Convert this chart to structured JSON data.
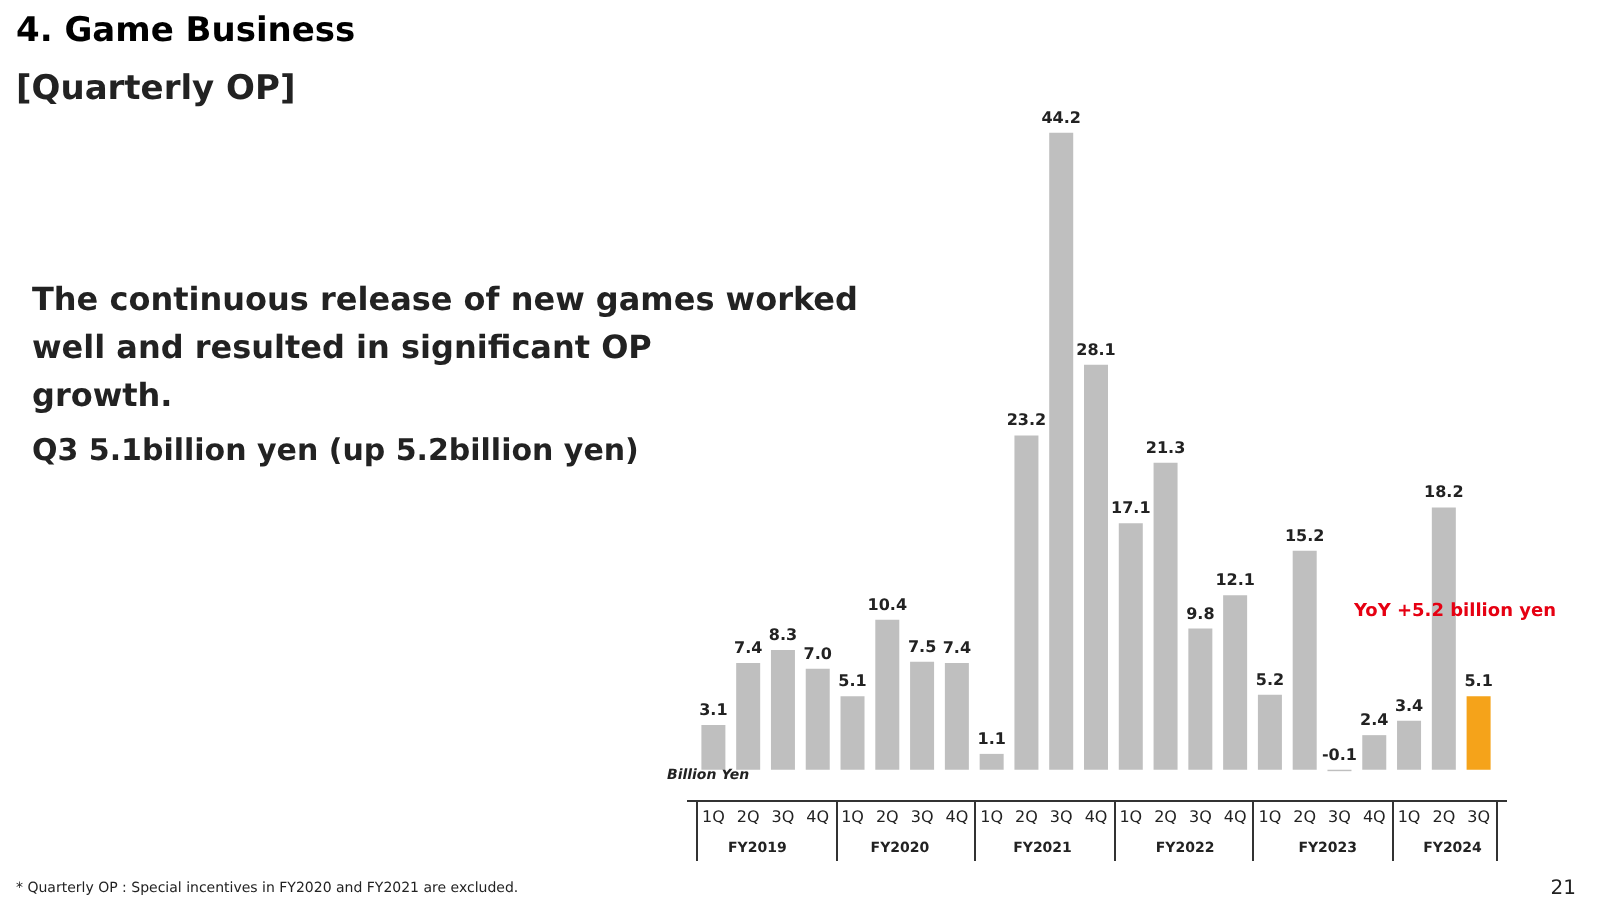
{
  "chart_data": {
    "type": "bar",
    "title": "4. Game Business",
    "subtitle": "[Quarterly OP]",
    "ylabel": "Billion Yen",
    "categories": [
      "1Q",
      "2Q",
      "3Q",
      "4Q",
      "1Q",
      "2Q",
      "3Q",
      "4Q",
      "1Q",
      "2Q",
      "3Q",
      "4Q",
      "1Q",
      "2Q",
      "3Q",
      "4Q",
      "1Q",
      "2Q",
      "3Q",
      "4Q",
      "1Q",
      "2Q",
      "3Q"
    ],
    "values": [
      3.1,
      7.4,
      8.3,
      7.0,
      5.1,
      10.4,
      7.5,
      7.4,
      1.1,
      23.2,
      44.2,
      28.1,
      17.1,
      21.3,
      9.8,
      12.1,
      5.2,
      15.2,
      -0.1,
      2.4,
      3.4,
      18.2,
      5.1
    ],
    "colors": [
      "#bfbfbf",
      "#bfbfbf",
      "#bfbfbf",
      "#bfbfbf",
      "#bfbfbf",
      "#bfbfbf",
      "#bfbfbf",
      "#bfbfbf",
      "#bfbfbf",
      "#bfbfbf",
      "#bfbfbf",
      "#bfbfbf",
      "#bfbfbf",
      "#bfbfbf",
      "#bfbfbf",
      "#bfbfbf",
      "#bfbfbf",
      "#bfbfbf",
      "#bfbfbf",
      "#bfbfbf",
      "#bfbfbf",
      "#bfbfbf",
      "#f5a31a"
    ],
    "value_labels": [
      "3.1",
      "7.4",
      "8.3",
      "7.0",
      "5.1",
      "10.4",
      "7.5",
      "7.4",
      "1.1",
      "23.2",
      "44.2",
      "28.1",
      "17.1",
      "21.3",
      "9.8",
      "12.1",
      "5.2",
      "15.2",
      "-0.1",
      "2.4",
      "3.4",
      "18.2",
      "5.1"
    ],
    "annotations": [
      "FY2019",
      "FY2020",
      "FY2021",
      "FY2022",
      "FY2023",
      "FY2024",
      "The continuous release of new games worked well and resulted in significant OP growth.",
      "Q3 5.1billion yen (up 5.2billion yen)",
      "YoY +5.2 billion yen",
      "* Quarterly OP : Special incentives in FY2020 and FY2021 are excluded.",
      "21"
    ]
  }
}
